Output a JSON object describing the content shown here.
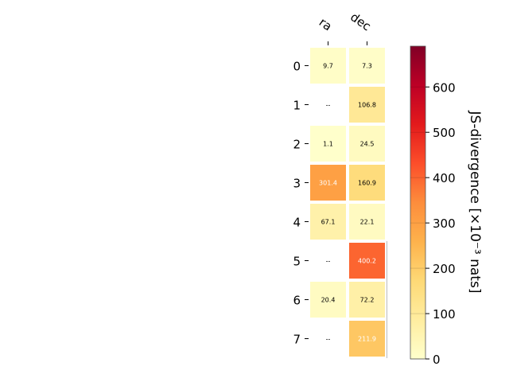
{
  "chart_data": {
    "type": "heatmap",
    "columns": [
      "ra",
      "dec"
    ],
    "rows": [
      "0",
      "1",
      "2",
      "3",
      "4",
      "5",
      "6",
      "7"
    ],
    "values": [
      [
        9.7,
        7.3
      ],
      [
        null,
        106.8
      ],
      [
        1.1,
        24.5
      ],
      [
        301.4,
        160.9
      ],
      [
        67.1,
        22.1
      ],
      [
        null,
        400.2
      ],
      [
        20.4,
        72.2
      ],
      [
        null,
        211.9
      ]
    ],
    "cell_labels": [
      [
        "9.7",
        "7.3"
      ],
      [
        "--",
        "106.8"
      ],
      [
        "1.1",
        "24.5"
      ],
      [
        "301.4",
        "160.9"
      ],
      [
        "67.1",
        "22.1"
      ],
      [
        "--",
        "400.2"
      ],
      [
        "20.4",
        "72.2"
      ],
      [
        "--",
        "211.9"
      ]
    ],
    "colorbar": {
      "label": "JS-divergence [×10⁻³ nats]",
      "ticks": [
        0,
        100,
        200,
        300,
        400,
        500,
        600
      ],
      "range": [
        0,
        690
      ],
      "colormap": "YlOrRd"
    },
    "grid": false,
    "legend": "none"
  }
}
